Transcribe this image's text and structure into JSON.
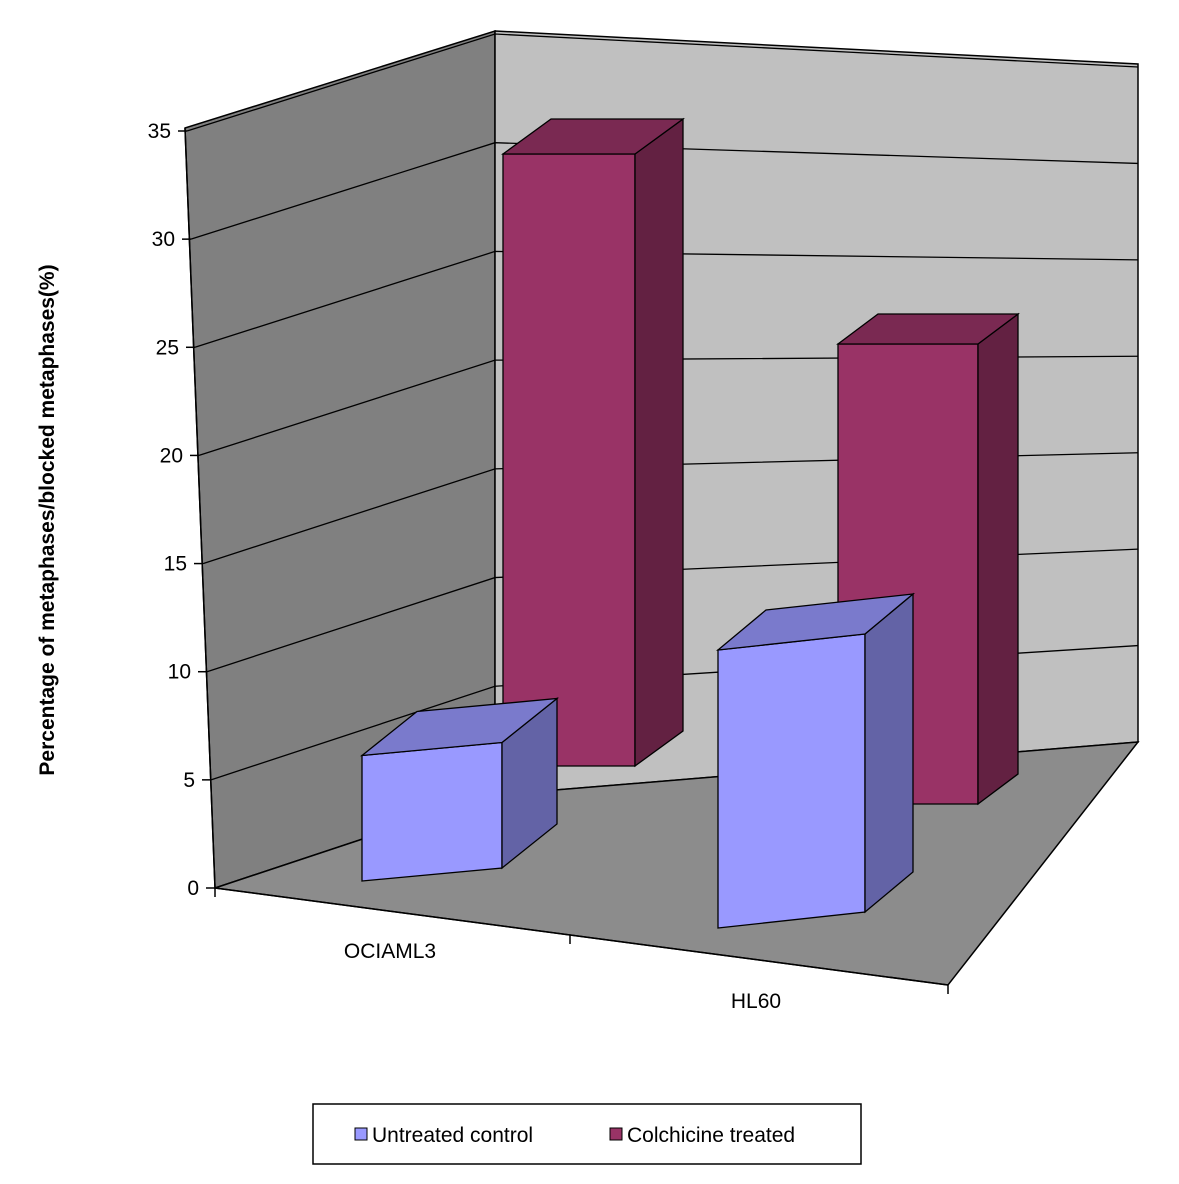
{
  "chart_data": {
    "type": "bar",
    "style": "3d-column",
    "categories": [
      "OCIAML3",
      "HL60"
    ],
    "series": [
      {
        "name": "Untreated control",
        "values": [
          5.5,
          11.5
        ],
        "color": "#9999ff"
      },
      {
        "name": "Colchicine treated",
        "values": [
          34,
          26
        ],
        "color": "#993366"
      }
    ],
    "title": "",
    "xlabel": "",
    "ylabel": "Percentage of metaphases/blocked metaphases(%)",
    "ylim": [
      0,
      35
    ],
    "yticks": [
      "0",
      "5",
      "10",
      "15",
      "20",
      "25",
      "30",
      "35"
    ],
    "grid": true,
    "legend": "bottom"
  }
}
